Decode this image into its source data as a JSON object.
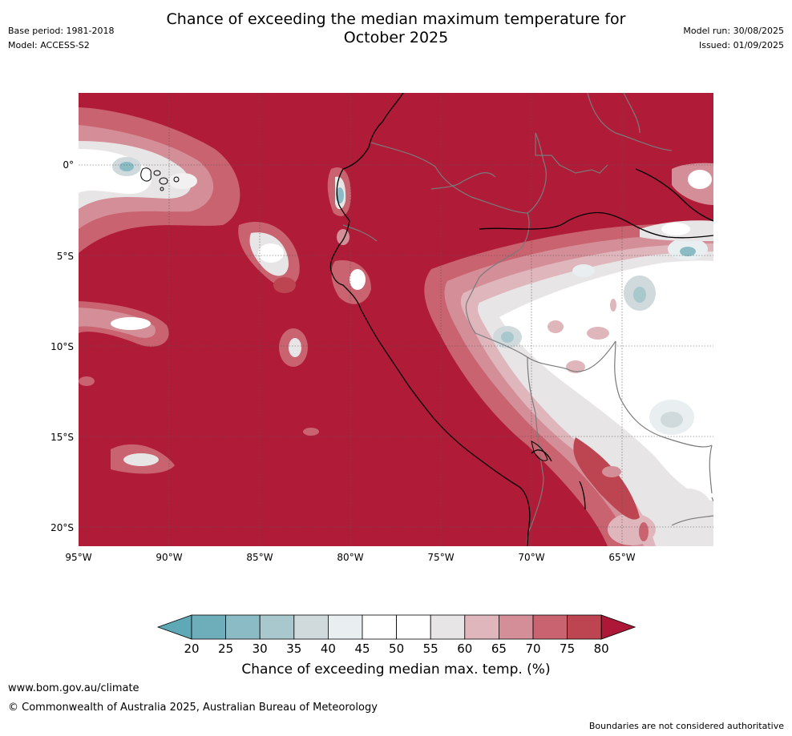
{
  "title": {
    "line1": "Chance of exceeding the median maximum temperature for",
    "line2": "October 2025"
  },
  "meta": {
    "base_period": "Base period: 1981-2018",
    "model": "Model: ACCESS-S2",
    "model_run": "Model run: 30/08/2025",
    "issued": "Issued: 01/09/2025"
  },
  "map": {
    "lat_labels": [
      "0°",
      "5°S",
      "10°S",
      "15°S",
      "20°S"
    ],
    "lon_labels": [
      "95°W",
      "90°W",
      "85°W",
      "80°W",
      "75°W",
      "70°W",
      "65°W"
    ],
    "extent": {
      "lon_min": -95,
      "lon_max": -60,
      "lat_min": -21,
      "lat_max": 4
    },
    "dominant_category_color": "#b01c38"
  },
  "legend": {
    "title": "Chance of exceeding median max. temp. (%)",
    "ticks": [
      "20",
      "25",
      "30",
      "35",
      "40",
      "45",
      "50",
      "55",
      "60",
      "65",
      "70",
      "75",
      "80"
    ],
    "colors": [
      "#5fa9b6",
      "#6eaebb",
      "#8bbcc6",
      "#a9c8ce",
      "#d0d9dc",
      "#e9eef0",
      "#ffffff",
      "#ffffff",
      "#e8e5e6",
      "#dfb6bc",
      "#d48e98",
      "#c9636f",
      "#bd4551",
      "#ad1838"
    ]
  },
  "footer": {
    "website": "www.bom.gov.au/climate",
    "copyright": "© Commonwealth of Australia 2025, Australian Bureau of Meteorology",
    "disclaimer": "Boundaries are not considered authoritative"
  }
}
